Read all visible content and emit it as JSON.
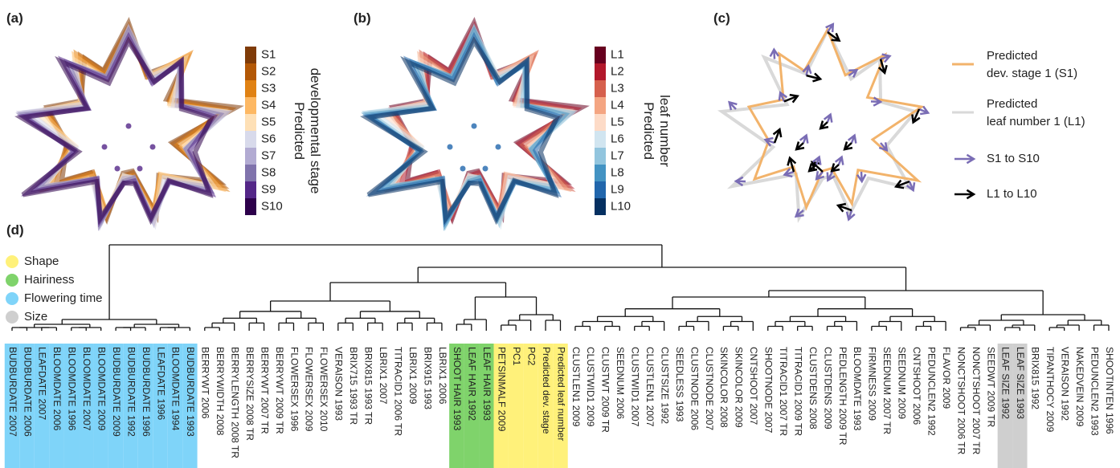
{
  "panels": {
    "a": {
      "label": "(a)",
      "legend_title": [
        "Predicted",
        "developmental stage"
      ],
      "legend": [
        {
          "label": "S1",
          "color": "#7f3b08"
        },
        {
          "label": "S2",
          "color": "#b35806"
        },
        {
          "label": "S3",
          "color": "#e08214"
        },
        {
          "label": "S4",
          "color": "#fdb863"
        },
        {
          "label": "S5",
          "color": "#fee0b6"
        },
        {
          "label": "S6",
          "color": "#d8daeb"
        },
        {
          "label": "S7",
          "color": "#b2abd2"
        },
        {
          "label": "S8",
          "color": "#8073ac"
        },
        {
          "label": "S9",
          "color": "#542788"
        },
        {
          "label": "S10",
          "color": "#2d004b"
        }
      ]
    },
    "b": {
      "label": "(b)",
      "legend_title": [
        "Predicted",
        "leaf number"
      ],
      "legend": [
        {
          "label": "L1",
          "color": "#67001f"
        },
        {
          "label": "L2",
          "color": "#b2182b"
        },
        {
          "label": "L3",
          "color": "#d6604d"
        },
        {
          "label": "L4",
          "color": "#f4a582"
        },
        {
          "label": "L5",
          "color": "#fddbc7"
        },
        {
          "label": "L6",
          "color": "#d1e5f0"
        },
        {
          "label": "L7",
          "color": "#92c5de"
        },
        {
          "label": "L8",
          "color": "#4393c3"
        },
        {
          "label": "L9",
          "color": "#2166ac"
        },
        {
          "label": "L10",
          "color": "#053061"
        }
      ]
    },
    "c": {
      "label": "(c)",
      "legend": [
        {
          "label": [
            "Predicted",
            "dev. stage 1 (S1)"
          ],
          "color": "#f2b36b"
        },
        {
          "label": [
            "Predicted",
            "leaf number 1 (L1)"
          ],
          "color": "#d9d9d9"
        },
        {
          "label": [
            "S1 to S10"
          ],
          "color": "#7a6db5"
        },
        {
          "label": [
            "L1 to L10"
          ],
          "color": "#000000"
        }
      ]
    },
    "d": {
      "label": "(d)",
      "legend": [
        {
          "label": "Shape",
          "color": "#fff17a"
        },
        {
          "label": "Hairiness",
          "color": "#7fd36b"
        },
        {
          "label": "Flowering time",
          "color": "#7fd4f9"
        },
        {
          "label": "Size",
          "color": "#cfcfcf"
        }
      ],
      "leaves": [
        {
          "label": "BUDBURDATE 2007",
          "highlight": "#7fd4f9"
        },
        {
          "label": "BUDBURDATE 2006",
          "highlight": "#7fd4f9"
        },
        {
          "label": "LEAFDATE 2007",
          "highlight": "#7fd4f9"
        },
        {
          "label": "BLOOMDATE 2006",
          "highlight": "#7fd4f9"
        },
        {
          "label": "BLOOMDATE 1996",
          "highlight": "#7fd4f9"
        },
        {
          "label": "BLOOMDATE 2007",
          "highlight": "#7fd4f9"
        },
        {
          "label": "BLOOMDATE 2009",
          "highlight": "#7fd4f9"
        },
        {
          "label": "BUDBURDATE 2009",
          "highlight": "#7fd4f9"
        },
        {
          "label": "BUDBURDATE 1992",
          "highlight": "#7fd4f9"
        },
        {
          "label": "BUDBURDATE 1996",
          "highlight": "#7fd4f9"
        },
        {
          "label": "LEAFDATE 1996",
          "highlight": "#7fd4f9"
        },
        {
          "label": "BLOOMDATE 1994",
          "highlight": "#7fd4f9"
        },
        {
          "label": "BUDBURDATE 1993",
          "highlight": "#7fd4f9"
        },
        {
          "label": "BERRYWT 2006"
        },
        {
          "label": "BERRYWIDTH 2008"
        },
        {
          "label": "BERRYLENGTH 2008 TR"
        },
        {
          "label": "BERRYSIZE 2008 TR"
        },
        {
          "label": "BERRYWT 2007 TR"
        },
        {
          "label": "BERRYWT 2009 TR"
        },
        {
          "label": "FLOWERSEX 1996"
        },
        {
          "label": "FLOWERSEX 2009"
        },
        {
          "label": "FLOWERSEX 2010"
        },
        {
          "label": "VERAISON 1993"
        },
        {
          "label": "BRIX715 1993 TR"
        },
        {
          "label": "BRIX815 1993 TR"
        },
        {
          "label": "LBRIX1 2007"
        },
        {
          "label": "TITRACID1 2006 TR"
        },
        {
          "label": "LBRIX1 2009"
        },
        {
          "label": "BRIX915 1993"
        },
        {
          "label": "LBRIX1 2006"
        },
        {
          "label": "SHOOT HAIR 1993",
          "highlight": "#7fd36b"
        },
        {
          "label": "LEAF HAIR 1992",
          "highlight": "#7fd36b"
        },
        {
          "label": "LEAF HAIR 1993",
          "highlight": "#7fd36b"
        },
        {
          "label": "PETSINMALF 2009",
          "highlight": "#fff17a"
        },
        {
          "label": "PC1",
          "highlight": "#fff17a"
        },
        {
          "label": "PC2",
          "highlight": "#fff17a"
        },
        {
          "label": "Predicted dev. stage",
          "highlight": "#fff17a"
        },
        {
          "label": "Predicted leaf number",
          "highlight": "#fff17a"
        },
        {
          "label": "CLUSTLEN1 2009"
        },
        {
          "label": "CLUSTWID1 2009"
        },
        {
          "label": "CLUSTWT 2009 TR"
        },
        {
          "label": "SEEDNUM 2006"
        },
        {
          "label": "CLUSTWID1 2007"
        },
        {
          "label": "CLUSTLEN1 2007"
        },
        {
          "label": "CLUSTSIZE 1992"
        },
        {
          "label": "SEEDLESS 1993"
        },
        {
          "label": "CLUSTNODE 2006"
        },
        {
          "label": "CLUSTNODE 2007"
        },
        {
          "label": "SKINCOLOR 2008"
        },
        {
          "label": "SKINCOLOR 2009"
        },
        {
          "label": "CNTSHOOT 2007"
        },
        {
          "label": "SHOOTNODE 2007"
        },
        {
          "label": "TITRACID1 2007 TR"
        },
        {
          "label": "TITRACID1 2009 TR"
        },
        {
          "label": "CLUSTDENS 2008"
        },
        {
          "label": "CLUSTDENS 2009"
        },
        {
          "label": "PEDLENGTH 2009 TR"
        },
        {
          "label": "BLOOMDATE 1993"
        },
        {
          "label": "FIRMNESS 2009"
        },
        {
          "label": "SEEDNUM 2007 TR"
        },
        {
          "label": "SEEDNUM 2009"
        },
        {
          "label": "CNTSHOOT 2006"
        },
        {
          "label": "PEDUNCLEN2 1992"
        },
        {
          "label": "FLAVOR 2009"
        },
        {
          "label": "NONCTSHOOT 2006 TR"
        },
        {
          "label": "NONCTSHOOT 2007 TR"
        },
        {
          "label": "SEEDWT 2009 TR"
        },
        {
          "label": "LEAF SIZE 1992",
          "highlight": "#cfcfcf"
        },
        {
          "label": "LEAF SIZE 1993",
          "highlight": "#cfcfcf"
        },
        {
          "label": "BRIX815 1992"
        },
        {
          "label": "TIPANTHOCY 2009"
        },
        {
          "label": "VERAISON 1992"
        },
        {
          "label": "NAKEDVEIN 2009"
        },
        {
          "label": "PEDUNCLEN2 1993"
        },
        {
          "label": "SHOOTINTEN 1996"
        }
      ]
    }
  }
}
